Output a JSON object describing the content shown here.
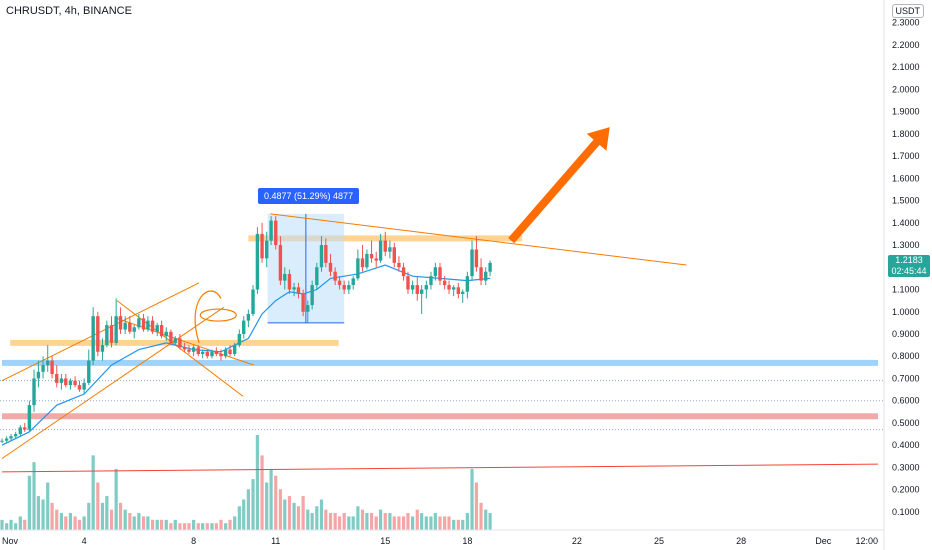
{
  "chart_data": {
    "type": "candlestick",
    "title": "CHRUSDT, 4h, BINANCE",
    "currency": "USDT",
    "price_axis": {
      "ticks": [
        "2.3000",
        "2.2000",
        "2.1000",
        "2.0000",
        "1.9000",
        "1.8000",
        "1.7000",
        "1.6000",
        "1.5000",
        "1.4000",
        "1.3000",
        "1.2000",
        "1.1000",
        "1.0000",
        "0.9000",
        "0.8000",
        "0.7000",
        "0.6000",
        "0.5000",
        "0.4000",
        "0.3000",
        "0.2000",
        "0.1000"
      ],
      "ylim": [
        0.05,
        2.33
      ]
    },
    "time_axis": {
      "ticks": [
        {
          "label": "Nov",
          "day": 1
        },
        {
          "label": "4",
          "day": 4
        },
        {
          "label": "8",
          "day": 8
        },
        {
          "label": "11",
          "day": 11
        },
        {
          "label": "15",
          "day": 15
        },
        {
          "label": "18",
          "day": 18
        },
        {
          "label": "22",
          "day": 22
        },
        {
          "label": "25",
          "day": 25
        },
        {
          "label": "28",
          "day": 28
        },
        {
          "label": "Dec",
          "day": 31
        },
        {
          "label": "12:00",
          "day": 33
        }
      ],
      "xlim": [
        1.0,
        33.0
      ]
    },
    "last_price": {
      "value": "1.2183",
      "countdown": "02:45:44"
    },
    "measure_label": "0.4877 (51.29%) 4877",
    "measure_range": {
      "start_day": 10.7,
      "end_day": 13.5,
      "low": 0.95,
      "high": 1.44
    },
    "candles": [
      [
        1.0,
        0.42,
        0.43,
        0.41,
        0.42
      ],
      [
        1.17,
        0.42,
        0.44,
        0.41,
        0.43
      ],
      [
        1.33,
        0.43,
        0.45,
        0.42,
        0.44
      ],
      [
        1.5,
        0.44,
        0.46,
        0.43,
        0.45
      ],
      [
        1.67,
        0.45,
        0.49,
        0.44,
        0.48
      ],
      [
        1.83,
        0.48,
        0.5,
        0.46,
        0.47
      ],
      [
        2.0,
        0.47,
        0.6,
        0.46,
        0.58
      ],
      [
        2.17,
        0.58,
        0.74,
        0.55,
        0.7
      ],
      [
        2.33,
        0.7,
        0.78,
        0.66,
        0.73
      ],
      [
        2.5,
        0.73,
        0.8,
        0.7,
        0.76
      ],
      [
        2.67,
        0.76,
        0.85,
        0.73,
        0.78
      ],
      [
        2.83,
        0.78,
        0.8,
        0.7,
        0.72
      ],
      [
        3.0,
        0.72,
        0.76,
        0.66,
        0.68
      ],
      [
        3.17,
        0.68,
        0.72,
        0.65,
        0.7
      ],
      [
        3.33,
        0.7,
        0.72,
        0.66,
        0.67
      ],
      [
        3.5,
        0.67,
        0.7,
        0.65,
        0.69
      ],
      [
        3.67,
        0.69,
        0.71,
        0.66,
        0.67
      ],
      [
        3.83,
        0.67,
        0.69,
        0.64,
        0.65
      ],
      [
        4.0,
        0.65,
        0.7,
        0.63,
        0.68
      ],
      [
        4.17,
        0.68,
        0.83,
        0.67,
        0.78
      ],
      [
        4.33,
        0.78,
        1.02,
        0.76,
        0.98
      ],
      [
        4.5,
        0.98,
        1.0,
        0.8,
        0.82
      ],
      [
        4.67,
        0.82,
        0.88,
        0.78,
        0.85
      ],
      [
        4.83,
        0.85,
        0.96,
        0.84,
        0.94
      ],
      [
        5.0,
        0.94,
        0.98,
        0.84,
        0.86
      ],
      [
        5.17,
        0.86,
        1.06,
        0.85,
        0.98
      ],
      [
        5.33,
        0.98,
        1.02,
        0.9,
        0.92
      ],
      [
        5.5,
        0.92,
        0.98,
        0.9,
        0.95
      ],
      [
        5.67,
        0.95,
        0.98,
        0.9,
        0.91
      ],
      [
        5.83,
        0.91,
        0.94,
        0.88,
        0.93
      ],
      [
        6.0,
        0.93,
        0.99,
        0.92,
        0.97
      ],
      [
        6.17,
        0.97,
        0.99,
        0.91,
        0.92
      ],
      [
        6.33,
        0.92,
        0.98,
        0.91,
        0.96
      ],
      [
        6.5,
        0.96,
        0.98,
        0.9,
        0.91
      ],
      [
        6.67,
        0.91,
        0.95,
        0.89,
        0.94
      ],
      [
        6.83,
        0.94,
        0.96,
        0.88,
        0.89
      ],
      [
        7.0,
        0.89,
        0.93,
        0.87,
        0.91
      ],
      [
        7.17,
        0.91,
        0.92,
        0.85,
        0.86
      ],
      [
        7.33,
        0.86,
        0.89,
        0.85,
        0.88
      ],
      [
        7.5,
        0.88,
        0.9,
        0.83,
        0.84
      ],
      [
        7.67,
        0.84,
        0.86,
        0.82,
        0.83
      ],
      [
        7.83,
        0.83,
        0.85,
        0.81,
        0.82
      ],
      [
        8.0,
        0.82,
        0.85,
        0.8,
        0.84
      ],
      [
        8.17,
        0.84,
        0.85,
        0.8,
        0.81
      ],
      [
        8.33,
        0.81,
        0.83,
        0.79,
        0.82
      ],
      [
        8.5,
        0.82,
        0.83,
        0.79,
        0.8
      ],
      [
        8.67,
        0.8,
        0.83,
        0.79,
        0.82
      ],
      [
        8.83,
        0.82,
        0.84,
        0.8,
        0.81
      ],
      [
        9.0,
        0.81,
        0.83,
        0.78,
        0.8
      ],
      [
        9.17,
        0.8,
        0.84,
        0.79,
        0.83
      ],
      [
        9.33,
        0.83,
        0.85,
        0.8,
        0.81
      ],
      [
        9.5,
        0.81,
        0.86,
        0.8,
        0.85
      ],
      [
        9.67,
        0.85,
        0.92,
        0.84,
        0.9
      ],
      [
        9.83,
        0.9,
        0.98,
        0.88,
        0.96
      ],
      [
        10.0,
        0.96,
        1.01,
        0.93,
        0.99
      ],
      [
        10.17,
        0.99,
        1.12,
        0.98,
        1.1
      ],
      [
        10.33,
        1.1,
        1.38,
        1.08,
        1.35
      ],
      [
        10.5,
        1.35,
        1.4,
        1.22,
        1.24
      ],
      [
        10.67,
        1.24,
        1.36,
        1.2,
        1.32
      ],
      [
        10.83,
        1.32,
        1.43,
        1.3,
        1.41
      ],
      [
        11.0,
        1.41,
        1.43,
        1.28,
        1.3
      ],
      [
        11.17,
        1.3,
        1.34,
        1.12,
        1.14
      ],
      [
        11.33,
        1.14,
        1.2,
        1.1,
        1.17
      ],
      [
        11.5,
        1.17,
        1.19,
        1.08,
        1.1
      ],
      [
        11.67,
        1.1,
        1.13,
        1.07,
        1.11
      ],
      [
        11.83,
        1.11,
        1.13,
        1.06,
        1.08
      ],
      [
        12.0,
        1.08,
        1.1,
        0.98,
        1.0
      ],
      [
        12.17,
        1.0,
        1.05,
        0.95,
        1.03
      ],
      [
        12.33,
        1.03,
        1.14,
        1.01,
        1.12
      ],
      [
        12.5,
        1.12,
        1.22,
        1.1,
        1.2
      ],
      [
        12.67,
        1.2,
        1.34,
        1.18,
        1.3
      ],
      [
        12.83,
        1.3,
        1.33,
        1.2,
        1.22
      ],
      [
        13.0,
        1.22,
        1.26,
        1.16,
        1.18
      ],
      [
        13.17,
        1.18,
        1.2,
        1.12,
        1.14
      ],
      [
        13.33,
        1.14,
        1.16,
        1.1,
        1.12
      ],
      [
        13.5,
        1.12,
        1.14,
        1.08,
        1.1
      ],
      [
        13.67,
        1.1,
        1.14,
        1.08,
        1.12
      ],
      [
        13.83,
        1.12,
        1.16,
        1.1,
        1.15
      ],
      [
        14.0,
        1.15,
        1.28,
        1.14,
        1.24
      ],
      [
        14.17,
        1.24,
        1.3,
        1.18,
        1.2
      ],
      [
        14.33,
        1.2,
        1.28,
        1.19,
        1.26
      ],
      [
        14.5,
        1.26,
        1.32,
        1.22,
        1.24
      ],
      [
        14.67,
        1.24,
        1.27,
        1.2,
        1.23
      ],
      [
        14.83,
        1.23,
        1.35,
        1.22,
        1.32
      ],
      [
        15.0,
        1.32,
        1.36,
        1.25,
        1.27
      ],
      [
        15.17,
        1.27,
        1.32,
        1.24,
        1.29
      ],
      [
        15.33,
        1.29,
        1.31,
        1.2,
        1.22
      ],
      [
        15.5,
        1.22,
        1.25,
        1.18,
        1.2
      ],
      [
        15.67,
        1.2,
        1.22,
        1.14,
        1.16
      ],
      [
        15.83,
        1.16,
        1.18,
        1.08,
        1.1
      ],
      [
        16.0,
        1.1,
        1.14,
        1.08,
        1.12
      ],
      [
        16.17,
        1.12,
        1.16,
        1.05,
        1.08
      ],
      [
        16.33,
        1.08,
        1.12,
        0.99,
        1.1
      ],
      [
        16.5,
        1.1,
        1.14,
        1.06,
        1.12
      ],
      [
        16.67,
        1.12,
        1.18,
        1.1,
        1.16
      ],
      [
        16.83,
        1.16,
        1.22,
        1.14,
        1.2
      ],
      [
        17.0,
        1.2,
        1.22,
        1.12,
        1.14
      ],
      [
        17.17,
        1.14,
        1.16,
        1.1,
        1.12
      ],
      [
        17.33,
        1.12,
        1.14,
        1.08,
        1.1
      ],
      [
        17.5,
        1.1,
        1.12,
        1.07,
        1.11
      ],
      [
        17.67,
        1.11,
        1.13,
        1.06,
        1.08
      ],
      [
        17.83,
        1.08,
        1.1,
        1.04,
        1.09
      ],
      [
        18.0,
        1.09,
        1.18,
        1.06,
        1.16
      ],
      [
        18.17,
        1.16,
        1.32,
        1.14,
        1.28
      ],
      [
        18.33,
        1.28,
        1.34,
        1.18,
        1.2
      ],
      [
        18.5,
        1.2,
        1.24,
        1.12,
        1.14
      ],
      [
        18.67,
        1.14,
        1.2,
        1.12,
        1.18
      ],
      [
        18.83,
        1.18,
        1.23,
        1.16,
        1.22
      ]
    ],
    "volumes": [
      3,
      2,
      3,
      2,
      4,
      3,
      16,
      20,
      10,
      9,
      14,
      8,
      6,
      5,
      4,
      5,
      4,
      3,
      4,
      8,
      22,
      14,
      8,
      10,
      6,
      18,
      8,
      6,
      5,
      4,
      5,
      4,
      4,
      3,
      3,
      3,
      3,
      2,
      3,
      2,
      2,
      2,
      3,
      2,
      2,
      2,
      2,
      2,
      3,
      2,
      3,
      4,
      7,
      9,
      12,
      15,
      28,
      22,
      14,
      18,
      16,
      12,
      9,
      10,
      8,
      7,
      10,
      6,
      5,
      7,
      9,
      6,
      5,
      5,
      4,
      5,
      4,
      4,
      7,
      6,
      5,
      5,
      4,
      6,
      5,
      5,
      4,
      4,
      4,
      5,
      4,
      6,
      5,
      4,
      4,
      5,
      4,
      4,
      4,
      3,
      3,
      3,
      5,
      18,
      14,
      8,
      6,
      5
    ],
    "ema": [
      [
        1.0,
        0.4
      ],
      [
        2.0,
        0.46
      ],
      [
        3.0,
        0.58
      ],
      [
        4.0,
        0.63
      ],
      [
        5.0,
        0.76
      ],
      [
        6.0,
        0.83
      ],
      [
        7.0,
        0.86
      ],
      [
        8.0,
        0.83
      ],
      [
        9.0,
        0.82
      ],
      [
        10.0,
        0.88
      ],
      [
        10.5,
        0.99
      ],
      [
        11.0,
        1.05
      ],
      [
        11.5,
        1.09
      ],
      [
        12.0,
        1.08
      ],
      [
        12.5,
        1.1
      ],
      [
        13.0,
        1.15
      ],
      [
        14.0,
        1.17
      ],
      [
        15.0,
        1.21
      ],
      [
        16.0,
        1.16
      ],
      [
        17.0,
        1.15
      ],
      [
        18.0,
        1.14
      ],
      [
        18.83,
        1.15
      ]
    ],
    "horizontal_zones": [
      {
        "price": 1.33,
        "color": "#ffcc80",
        "x0_day": 10.0,
        "x1_day": 20.0
      },
      {
        "price": 0.86,
        "color": "#ffcc80",
        "x0_day": 1.3,
        "x1_day": 13.3
      },
      {
        "price": 0.77,
        "color": "#90caf9",
        "x0_day": 1.0,
        "x1_day": 33.0
      },
      {
        "price": 0.53,
        "color": "#ef9a9a",
        "x0_day": 1.0,
        "x1_day": 33.0
      }
    ],
    "dotted_levels": [
      0.69,
      0.6,
      0.47
    ],
    "trend_lines": [
      {
        "color": "#f57c00",
        "points": [
          [
            1.0,
            0.69
          ],
          [
            8.2,
            1.13
          ]
        ]
      },
      {
        "color": "#f57c00",
        "points": [
          [
            1.0,
            0.34
          ],
          [
            9.1,
            1.02
          ]
        ]
      },
      {
        "color": "#f57c00",
        "points": [
          [
            5.2,
            1.05
          ],
          [
            9.8,
            0.62
          ]
        ]
      },
      {
        "color": "#f57c00",
        "points": [
          [
            5.2,
            0.97
          ],
          [
            10.2,
            0.76
          ]
        ]
      },
      {
        "color": "#f57c00",
        "points": [
          [
            10.8,
            1.44
          ],
          [
            26.0,
            1.21
          ]
        ]
      },
      {
        "color": "#f44336",
        "points": [
          [
            1.0,
            0.28
          ],
          [
            33.0,
            0.315
          ]
        ]
      }
    ],
    "arrow": {
      "color": "#ff6d00",
      "from": [
        19.6,
        1.32
      ],
      "to": [
        23.2,
        1.83
      ]
    },
    "colors": {
      "up": "#26a69a",
      "down": "#ef5350",
      "ema": "#2196f3",
      "vol_up": "#80cbc4",
      "vol_down": "#f4a6a6"
    },
    "grid": false,
    "legend": "none"
  }
}
